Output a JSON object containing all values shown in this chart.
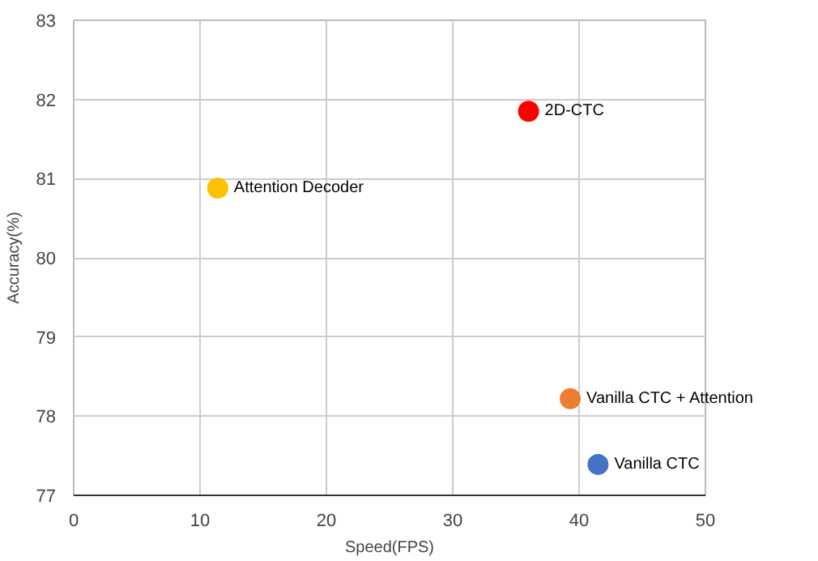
{
  "chart_data": {
    "type": "scatter",
    "xlabel": "Speed(FPS)",
    "ylabel": "Accuracy(%)",
    "xlim": [
      0,
      50
    ],
    "xticks": [
      0,
      10,
      20,
      30,
      40,
      50
    ],
    "ylim": [
      77,
      83
    ],
    "yticks": [
      77,
      78,
      79,
      80,
      81,
      82,
      83
    ],
    "grid": true,
    "marker": "circle",
    "series": [
      {
        "name": "2D-CTC",
        "color": "#ff0000",
        "x": [
          36.0
        ],
        "values": [
          81.85
        ]
      },
      {
        "name": "Attention Decoder",
        "color": "#ffc000",
        "x": [
          11.4
        ],
        "values": [
          80.88
        ]
      },
      {
        "name": "Vanilla CTC + Attention",
        "color": "#ed7d31",
        "x": [
          39.3
        ],
        "values": [
          78.22
        ]
      },
      {
        "name": "Vanilla CTC",
        "color": "#4472c4",
        "x": [
          41.5
        ],
        "values": [
          77.39
        ]
      }
    ]
  }
}
